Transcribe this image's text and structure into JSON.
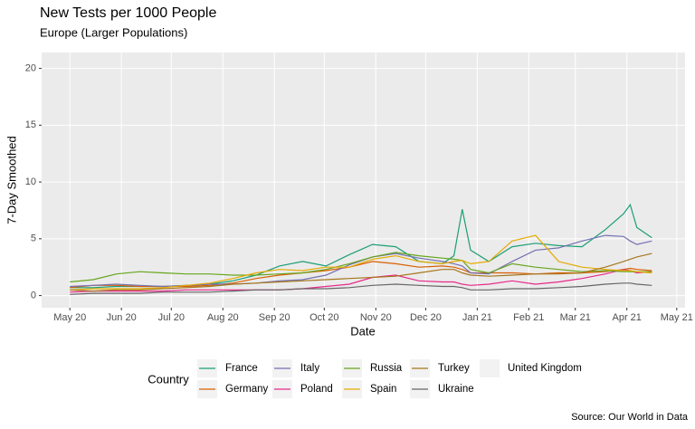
{
  "chart_data": {
    "type": "line",
    "title": "New Tests per 1000 People",
    "subtitle": "Europe (Larger Populations)",
    "x_label": "Date",
    "y_label": "7-Day Smoothed",
    "legend_title": "Country",
    "caption": "Source:  Our World in Data",
    "grid": true,
    "legend_position": "bottom",
    "x": [
      0,
      14,
      28,
      42,
      56,
      70,
      84,
      98,
      112,
      126,
      140,
      154,
      168,
      182,
      196,
      210,
      224,
      231,
      236,
      241,
      252,
      266,
      280,
      294,
      308,
      322,
      333,
      337,
      341,
      350
    ],
    "xlim": [
      -17,
      370
    ],
    "xticks": [
      {
        "value": 0,
        "label": "May 20"
      },
      {
        "value": 31,
        "label": "Jun 20"
      },
      {
        "value": 61,
        "label": "Jul 20"
      },
      {
        "value": 92,
        "label": "Aug 20"
      },
      {
        "value": 123,
        "label": "Sep 20"
      },
      {
        "value": 153,
        "label": "Oct 20"
      },
      {
        "value": 184,
        "label": "Nov 20"
      },
      {
        "value": 214,
        "label": "Dec 20"
      },
      {
        "value": 245,
        "label": "Jan 21"
      },
      {
        "value": 276,
        "label": "Feb 21"
      },
      {
        "value": 304,
        "label": "Mar 21"
      },
      {
        "value": 335,
        "label": "Apr 21"
      },
      {
        "value": 365,
        "label": "May 21"
      }
    ],
    "ylim": [
      -1.07,
      21.4
    ],
    "yticks": [
      0,
      5,
      10,
      15,
      20
    ],
    "series": [
      {
        "name": "France",
        "color": "#1b9e77",
        "values": [
          0.7,
          0.7,
          0.8,
          0.8,
          0.8,
          0.9,
          1.0,
          1.3,
          1.8,
          2.6,
          3.0,
          2.6,
          3.6,
          4.5,
          4.3,
          3.0,
          2.8,
          3.5,
          7.6,
          4.0,
          3.0,
          4.3,
          4.6,
          4.4,
          4.3,
          5.8,
          7.2,
          8.0,
          6.0,
          5.1
        ]
      },
      {
        "name": "Germany",
        "color": "#d95f02",
        "values": [
          0.7,
          0.9,
          0.9,
          0.8,
          0.8,
          0.8,
          0.9,
          1.1,
          1.5,
          1.8,
          2.0,
          2.2,
          2.5,
          3.0,
          2.8,
          2.5,
          2.6,
          2.5,
          2.3,
          2.0,
          2.0,
          2.0,
          1.9,
          2.0,
          2.0,
          2.1,
          2.3,
          2.4,
          2.3,
          2.2
        ]
      },
      {
        "name": "Italy",
        "color": "#7570b3",
        "values": [
          0.8,
          0.9,
          1.0,
          0.9,
          0.8,
          0.9,
          1.0,
          1.0,
          1.1,
          1.3,
          1.4,
          1.8,
          2.7,
          3.4,
          3.7,
          3.3,
          3.0,
          2.8,
          2.6,
          2.0,
          1.9,
          3.0,
          4.0,
          4.2,
          4.8,
          5.3,
          5.2,
          4.8,
          4.5,
          4.8
        ]
      },
      {
        "name": "Poland",
        "color": "#e7298a",
        "values": [
          0.3,
          0.4,
          0.4,
          0.4,
          0.4,
          0.5,
          0.5,
          0.5,
          0.5,
          0.5,
          0.6,
          0.8,
          1.0,
          1.6,
          1.8,
          1.3,
          1.2,
          1.2,
          1.0,
          0.9,
          1.0,
          1.3,
          1.0,
          1.2,
          1.5,
          1.9,
          2.3,
          2.2,
          2.0,
          2.1
        ]
      },
      {
        "name": "Russia",
        "color": "#66a61e",
        "values": [
          1.2,
          1.4,
          1.9,
          2.1,
          2.0,
          1.9,
          1.9,
          1.8,
          1.8,
          1.9,
          2.0,
          2.3,
          2.8,
          3.4,
          3.8,
          3.5,
          3.3,
          3.2,
          3.1,
          2.3,
          2.0,
          2.8,
          2.5,
          2.3,
          2.1,
          2.2,
          2.1,
          2.1,
          2.1,
          2.1
        ]
      },
      {
        "name": "Spain",
        "color": "#e6ab02",
        "values": [
          0.5,
          0.6,
          0.6,
          0.6,
          0.7,
          0.9,
          1.1,
          1.5,
          2.0,
          2.3,
          2.2,
          2.5,
          2.5,
          3.2,
          3.5,
          3.0,
          2.8,
          3.0,
          3.1,
          2.8,
          3.0,
          4.8,
          5.3,
          3.0,
          2.5,
          2.3,
          2.2,
          2.2,
          2.1,
          2.0
        ]
      },
      {
        "name": "Turkey",
        "color": "#a6761d",
        "values": [
          0.5,
          0.4,
          0.5,
          0.5,
          0.6,
          0.7,
          0.8,
          1.0,
          1.1,
          1.2,
          1.3,
          1.4,
          1.5,
          1.6,
          1.7,
          2.0,
          2.3,
          2.3,
          2.0,
          1.8,
          1.7,
          1.8,
          1.9,
          1.9,
          2.0,
          2.5,
          3.0,
          3.2,
          3.4,
          3.7
        ]
      },
      {
        "name": "Ukraine",
        "color": "#666666",
        "values": [
          0.1,
          0.2,
          0.2,
          0.2,
          0.3,
          0.3,
          0.3,
          0.4,
          0.5,
          0.5,
          0.6,
          0.6,
          0.7,
          0.9,
          1.0,
          0.9,
          0.8,
          0.8,
          0.7,
          0.5,
          0.5,
          0.6,
          0.6,
          0.7,
          0.8,
          1.0,
          1.1,
          1.1,
          1.0,
          0.9
        ]
      },
      {
        "name": "United Kingdom",
        "values": [
          null,
          null,
          null,
          null,
          null,
          null,
          null,
          null,
          null,
          null,
          null,
          null,
          null,
          null,
          null,
          null,
          null,
          null,
          null,
          null,
          null,
          null,
          null,
          null,
          null,
          null,
          null,
          null,
          null,
          null
        ]
      }
    ]
  }
}
